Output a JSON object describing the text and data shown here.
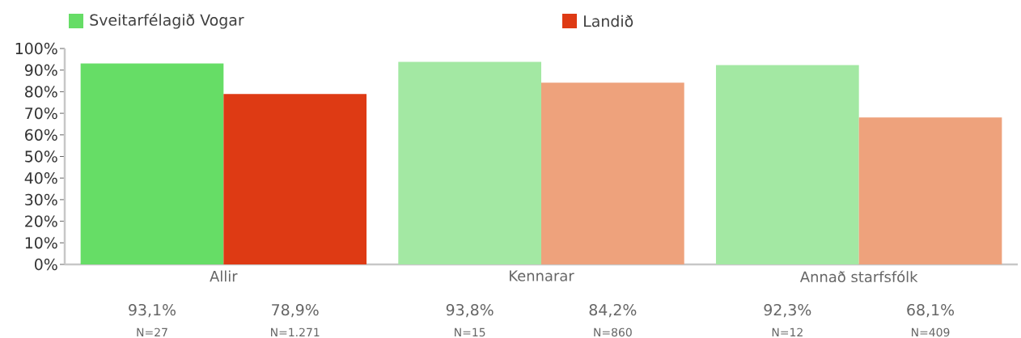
{
  "chart_data": {
    "type": "bar",
    "categories": [
      "Allir",
      "Kennarar",
      "Annað starfsfólk"
    ],
    "series": [
      {
        "name": "Sveitarfélagið Vogar",
        "color": "#66dd66",
        "colors": [
          "#66dd66",
          "#a3e8a3",
          "#a3e8a3"
        ],
        "values": [
          93.1,
          93.8,
          92.3
        ],
        "value_labels": [
          "93,1%",
          "93,8%",
          "92,3%"
        ]
      },
      {
        "name": "Landið",
        "color": "#de3a14",
        "colors": [
          "#de3a14",
          "#eea27c",
          "#eea27c"
        ],
        "values": [
          78.9,
          84.2,
          68.1
        ],
        "value_labels": [
          "78,9%",
          "84,2%",
          "68,1%"
        ]
      }
    ],
    "annotations": [
      "N=27",
      "N=1.271",
      "N=15",
      "N=860",
      "N=12",
      "N=409"
    ],
    "ylim": [
      0,
      100
    ],
    "yticks": [
      {
        "value": 0,
        "label": "0%"
      },
      {
        "value": 10,
        "label": "10%"
      },
      {
        "value": 20,
        "label": "20%"
      },
      {
        "value": 30,
        "label": "30%"
      },
      {
        "value": 40,
        "label": "40%"
      },
      {
        "value": 50,
        "label": "50%"
      },
      {
        "value": 60,
        "label": "60%"
      },
      {
        "value": 70,
        "label": "70%"
      },
      {
        "value": 80,
        "label": "80%"
      },
      {
        "value": 90,
        "label": "90%"
      },
      {
        "value": 100,
        "label": "100%"
      }
    ],
    "grid": false,
    "legend": "top"
  }
}
